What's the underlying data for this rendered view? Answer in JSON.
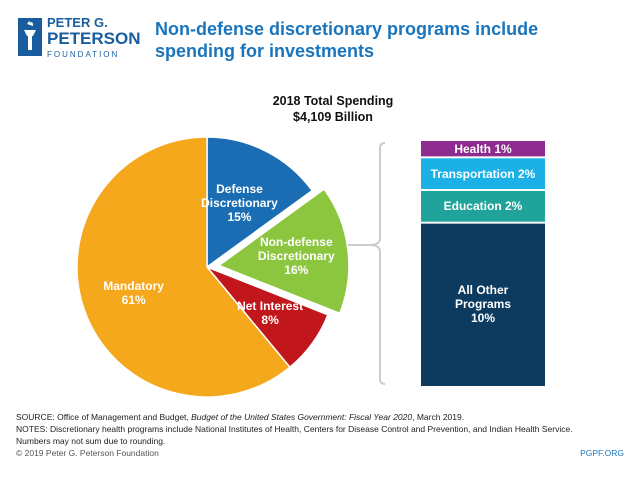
{
  "header": {
    "logo": [
      "PETER G.",
      "PETERSON",
      "FOUNDATION"
    ],
    "title": "Non-defense discretionary programs include spending for investments"
  },
  "chart_data": [
    {
      "type": "pie",
      "title": "2018 Total Spending",
      "subtitle": "$4,109 Billion",
      "categories": [
        "Defense Discretionary",
        "Non-defense Discretionary",
        "Net Interest",
        "Mandatory"
      ],
      "values": [
        15,
        16,
        8,
        61
      ],
      "value_labels": [
        "15%",
        "16%",
        "8%",
        "61%"
      ],
      "colors": [
        "#1a6db3",
        "#8cc63f",
        "#c0161c",
        "#f5a81c"
      ]
    },
    {
      "type": "stacked-bar",
      "series": [
        {
          "name": "Health",
          "color": "#8e2b8e",
          "values": [
            1
          ],
          "value_labels": [
            "1%"
          ]
        },
        {
          "name": "Transportation",
          "color": "#1bb0e6",
          "values": [
            2
          ],
          "value_labels": [
            "2%"
          ]
        },
        {
          "name": "Education",
          "color": "#1fa39a",
          "values": [
            2
          ],
          "value_labels": [
            "2%"
          ]
        },
        {
          "name": "All Other Programs",
          "color": "#0d3b60",
          "values": [
            10
          ],
          "value_labels": [
            "10%"
          ]
        }
      ]
    }
  ],
  "footer": {
    "source_prefix": "SOURCE: Office of Management and Budget, ",
    "source_italic": "Budget of the United States Government: Fiscal Year 2020",
    "source_suffix": ", March 2019.",
    "notes": [
      "NOTES: Discretionary health programs include National Institutes of Health, Centers for Disease Control and Prevention, and Indian Health Service.",
      "Numbers may not sum due to rounding."
    ],
    "copyright": "© 2019 Peter G. Peterson Foundation",
    "site": "PGPF.ORG"
  }
}
